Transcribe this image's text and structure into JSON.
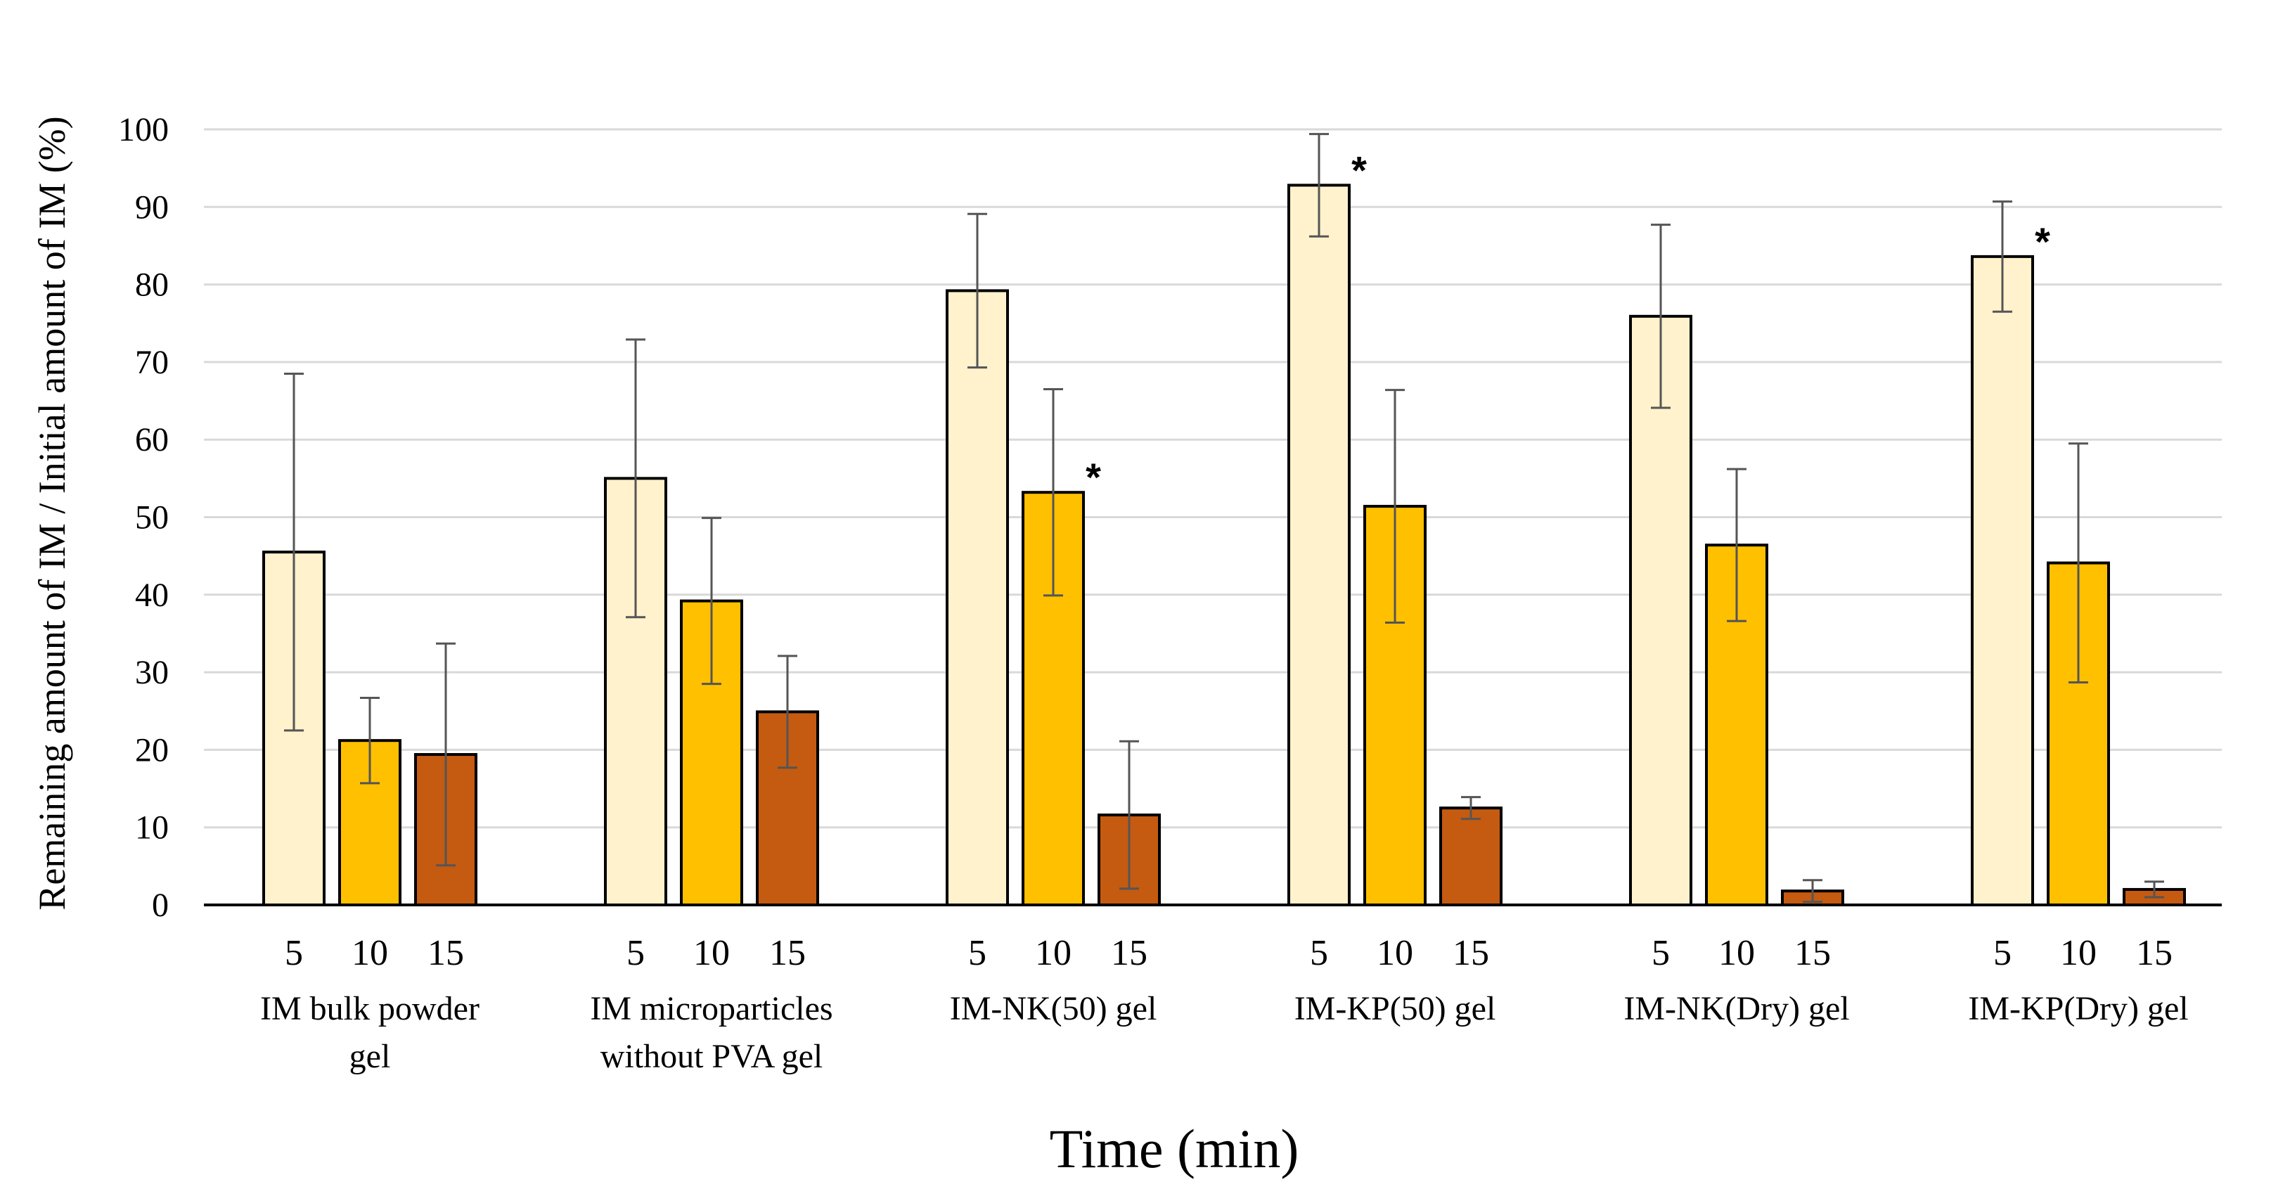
{
  "chart_data": {
    "type": "bar",
    "title": "",
    "xlabel": "Time (min)",
    "ylabel": "Remaining amount of IM / Initial amount of IM (%)",
    "ylim": [
      0,
      100
    ],
    "yticks": [
      0,
      10,
      20,
      30,
      40,
      50,
      60,
      70,
      80,
      90,
      100
    ],
    "grid": true,
    "legend": "none",
    "series_colors": [
      "#FFF2CC",
      "#FFC000",
      "#C55A11"
    ],
    "time_points": [
      "5",
      "10",
      "15"
    ],
    "significance_marker": "*",
    "groups": [
      {
        "label_lines": [
          "IM bulk powder",
          "gel"
        ],
        "values": [
          45.5,
          21.2,
          19.4
        ],
        "errors": [
          23.0,
          5.5,
          14.3
        ],
        "significant": [
          false,
          false,
          false
        ]
      },
      {
        "label_lines": [
          "IM microparticles",
          "without PVA gel"
        ],
        "values": [
          55.0,
          39.2,
          24.9
        ],
        "errors": [
          17.9,
          10.7,
          7.2
        ],
        "significant": [
          false,
          false,
          false
        ]
      },
      {
        "label_lines": [
          "IM-NK(50) gel"
        ],
        "values": [
          79.2,
          53.2,
          11.6
        ],
        "errors": [
          9.9,
          13.3,
          9.5
        ],
        "significant": [
          false,
          true,
          false
        ]
      },
      {
        "label_lines": [
          "IM-KP(50) gel"
        ],
        "values": [
          92.8,
          51.4,
          12.5
        ],
        "errors": [
          6.6,
          15.0,
          1.4
        ],
        "significant": [
          true,
          false,
          false
        ]
      },
      {
        "label_lines": [
          "IM-NK(Dry) gel"
        ],
        "values": [
          75.9,
          46.4,
          1.8
        ],
        "errors": [
          11.8,
          9.8,
          1.4
        ],
        "significant": [
          false,
          false,
          false
        ]
      },
      {
        "label_lines": [
          "IM-KP(Dry) gel"
        ],
        "values": [
          83.6,
          44.1,
          2.0
        ],
        "errors": [
          7.1,
          15.4,
          1.0
        ],
        "significant": [
          true,
          false,
          false
        ]
      }
    ]
  }
}
